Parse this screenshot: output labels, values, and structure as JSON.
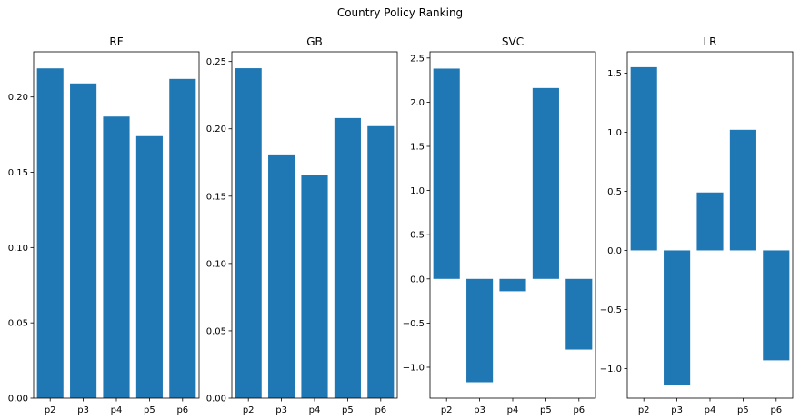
{
  "figure_title": "Country Policy Ranking",
  "colors": {
    "bar": "#1f77b4"
  },
  "chart_data": [
    {
      "type": "bar",
      "title": "RF",
      "categories": [
        "p2",
        "p3",
        "p4",
        "p5",
        "p6"
      ],
      "values": [
        0.219,
        0.209,
        0.187,
        0.174,
        0.212
      ],
      "ylim": [
        0,
        0.23
      ],
      "yticks": [
        0.0,
        0.05,
        0.1,
        0.15,
        0.2
      ],
      "ytick_labels": [
        "0.00",
        "0.05",
        "0.10",
        "0.15",
        "0.20"
      ],
      "grid": false
    },
    {
      "type": "bar",
      "title": "GB",
      "categories": [
        "p2",
        "p3",
        "p4",
        "p5",
        "p6"
      ],
      "values": [
        0.245,
        0.181,
        0.166,
        0.208,
        0.202
      ],
      "ylim": [
        0,
        0.2572
      ],
      "yticks": [
        0.0,
        0.05,
        0.1,
        0.15,
        0.2,
        0.25
      ],
      "ytick_labels": [
        "0.00",
        "0.05",
        "0.10",
        "0.15",
        "0.20",
        "0.25"
      ],
      "grid": false
    },
    {
      "type": "bar",
      "title": "SVC",
      "categories": [
        "p2",
        "p3",
        "p4",
        "p5",
        "p6"
      ],
      "values": [
        2.38,
        -1.17,
        -0.14,
        2.16,
        -0.8
      ],
      "ylim": [
        -1.35,
        2.57
      ],
      "yticks": [
        -1.0,
        -0.5,
        0.0,
        0.5,
        1.0,
        1.5,
        2.0,
        2.5
      ],
      "ytick_labels": [
        "−1.0",
        "−0.5",
        "0.0",
        "0.5",
        "1.0",
        "1.5",
        "2.0",
        "2.5"
      ],
      "grid": false
    },
    {
      "type": "bar",
      "title": "LR",
      "categories": [
        "p2",
        "p3",
        "p4",
        "p5",
        "p6"
      ],
      "values": [
        1.55,
        -1.14,
        0.49,
        1.02,
        -0.93
      ],
      "ylim": [
        -1.25,
        1.68
      ],
      "yticks": [
        -1.0,
        -0.5,
        0.0,
        0.5,
        1.0,
        1.5
      ],
      "ytick_labels": [
        "−1.0",
        "−0.5",
        "0.0",
        "0.5",
        "1.0",
        "1.5"
      ],
      "grid": false
    }
  ]
}
